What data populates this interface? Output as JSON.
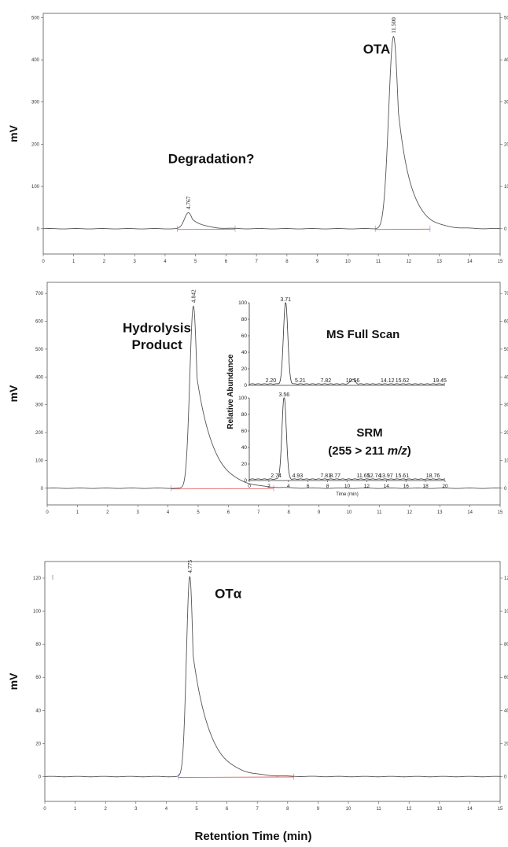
{
  "figure": {
    "x_axis_label": "Retention Time (min)"
  },
  "chart_data": [
    {
      "type": "line",
      "ylabel": "mV",
      "xlim": [
        0,
        15
      ],
      "ylim": [
        -60,
        510
      ],
      "x_ticks": [
        0,
        1,
        2,
        3,
        4,
        5,
        6,
        7,
        8,
        9,
        10,
        11,
        12,
        13,
        14,
        15
      ],
      "y_ticks": [
        0,
        100,
        200,
        300,
        400,
        500
      ],
      "peaks": [
        {
          "rt": 4.767,
          "height": 38,
          "sigma": 0.13,
          "tail": 0.35,
          "label": "4.767"
        },
        {
          "rt": 11.5,
          "height": 455,
          "sigma": 0.16,
          "tail": 0.42,
          "label": "11.500"
        }
      ],
      "annotations": [
        {
          "text": "Degradation?",
          "x": 4.1,
          "y": 155
        },
        {
          "text": "OTA",
          "x": 10.5,
          "y": 415
        }
      ],
      "baseline_marks": [
        4.4,
        6.3,
        10.9,
        12.7
      ]
    },
    {
      "type": "line",
      "ylabel": "mV",
      "xlim": [
        0,
        15
      ],
      "ylim": [
        -60,
        740
      ],
      "x_ticks": [
        0,
        1,
        2,
        3,
        4,
        5,
        6,
        7,
        8,
        9,
        10,
        11,
        12,
        13,
        14,
        15
      ],
      "y_ticks": [
        0,
        100,
        200,
        300,
        400,
        500,
        600,
        700
      ],
      "peaks": [
        {
          "rt": 4.842,
          "height": 655,
          "sigma": 0.12,
          "tail": 0.55,
          "label": "4.842"
        }
      ],
      "annotations": [
        {
          "text": "Hydrolysis",
          "x": 2.5,
          "y": 560
        },
        {
          "text": "Product",
          "x": 2.8,
          "y": 500
        }
      ],
      "baseline_marks": [
        4.1,
        7.5
      ]
    },
    {
      "type": "line",
      "ylabel": "mV",
      "xlim": [
        0,
        15
      ],
      "ylim": [
        -15,
        130
      ],
      "x_ticks": [
        0,
        1,
        2,
        3,
        4,
        5,
        6,
        7,
        8,
        9,
        10,
        11,
        12,
        13,
        14,
        15
      ],
      "y_ticks": [
        0,
        20,
        40,
        60,
        80,
        100,
        120
      ],
      "peaks": [
        {
          "rt": 4.775,
          "height": 121,
          "sigma": 0.11,
          "tail": 0.55,
          "label": "4.775"
        }
      ],
      "annotations": [
        {
          "text": "OTα",
          "x": 5.6,
          "y": 108
        }
      ],
      "baseline_marks": [
        4.4,
        8.2
      ]
    },
    {
      "type": "line",
      "title": "MS Full Scan",
      "ylabel": "Relative Abundance",
      "xlabel": "Time (min)",
      "xlim": [
        0,
        20
      ],
      "ylim": [
        0,
        100
      ],
      "y_ticks": [
        0,
        20,
        40,
        60,
        80,
        100
      ],
      "peaks": [
        {
          "rt": 3.71,
          "height": 100
        },
        {
          "rt": 10.56,
          "height": 6
        }
      ],
      "peak_labels": [
        {
          "x": 2.2,
          "text": "2.20"
        },
        {
          "x": 3.71,
          "text": "3.71",
          "top": true
        },
        {
          "x": 5.21,
          "text": "5.21"
        },
        {
          "x": 7.82,
          "text": "7.82"
        },
        {
          "x": 10.56,
          "text": "10.56"
        },
        {
          "x": 14.12,
          "text": "14.12"
        },
        {
          "x": 15.62,
          "text": "15.62"
        },
        {
          "x": 19.45,
          "text": "19.45"
        }
      ]
    },
    {
      "type": "line",
      "title": "SRM",
      "subtitle_prefix": "(255 > 211 ",
      "subtitle_unit": "m/z",
      "subtitle_suffix": ")",
      "xlim": [
        0,
        20
      ],
      "ylim": [
        0,
        100
      ],
      "x_ticks": [
        0,
        2,
        4,
        6,
        8,
        10,
        12,
        14,
        16,
        18,
        20
      ],
      "y_ticks": [
        0,
        20,
        40,
        60,
        80,
        100
      ],
      "peaks": [
        {
          "rt": 3.56,
          "height": 100
        }
      ],
      "peak_labels": [
        {
          "x": 2.74,
          "text": "2.74"
        },
        {
          "x": 3.56,
          "text": "3.56",
          "top": true
        },
        {
          "x": 4.93,
          "text": "4.93"
        },
        {
          "x": 7.81,
          "text": "7.81"
        },
        {
          "x": 8.77,
          "text": "8.77"
        },
        {
          "x": 11.65,
          "text": "11.65"
        },
        {
          "x": 12.74,
          "text": "12.74"
        },
        {
          "x": 13.97,
          "text": "13.97"
        },
        {
          "x": 15.61,
          "text": "15.61"
        },
        {
          "x": 18.76,
          "text": "18.76"
        }
      ]
    }
  ]
}
